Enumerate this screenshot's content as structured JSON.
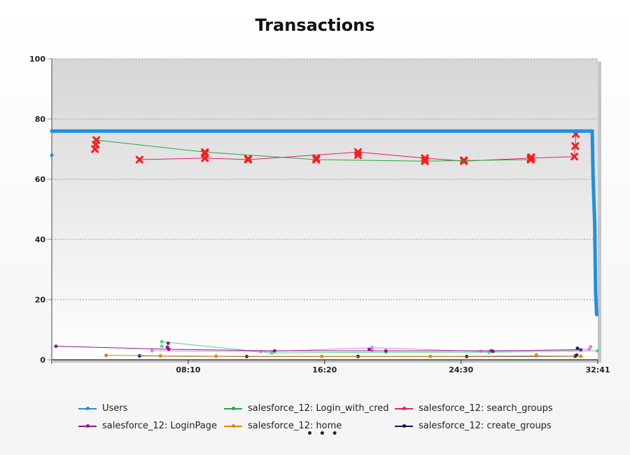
{
  "chart_data": {
    "type": "line",
    "title": "Transactions",
    "x_ticks": [
      "08:10",
      "16:20",
      "24:30",
      "32:41"
    ],
    "x_range_seconds": [
      0,
      1961
    ],
    "y_ticks": [
      "0",
      "20",
      "40",
      "60",
      "80",
      "100"
    ],
    "ylim": [
      0,
      100
    ],
    "grid": true,
    "legend_position": "bottom",
    "series": [
      {
        "name": "Users",
        "color": "#1e90e0",
        "marker": "dot",
        "width": 5,
        "points": [
          [
            0,
            76
          ],
          [
            1941,
            76
          ],
          [
            1944,
            61
          ],
          [
            1950,
            45
          ],
          [
            1953,
            23
          ],
          [
            1957,
            15
          ]
        ],
        "extra_points": [
          [
            0,
            68
          ]
        ]
      },
      {
        "name": "salesforce_12: Login_with_cred",
        "color": "#22aa44",
        "marker": "x",
        "width": 1,
        "points": [
          [
            160,
            73
          ],
          [
            550,
            69
          ],
          [
            950,
            66.5
          ],
          [
            1340,
            66
          ],
          [
            1720,
            66.5
          ]
        ]
      },
      {
        "name": "salesforce_12: search_groups",
        "color": "#e0206a",
        "marker": "x",
        "width": 1,
        "points": [
          [
            315,
            66.5
          ],
          [
            550,
            67
          ],
          [
            705,
            66.5
          ],
          [
            1100,
            69
          ],
          [
            1340,
            67
          ],
          [
            1480,
            66
          ],
          [
            1720,
            67
          ],
          [
            1877,
            67.5
          ],
          [
            1880,
            71
          ],
          [
            1882,
            75
          ]
        ],
        "extra_points": [
          [
            155,
            70
          ],
          [
            158,
            71.5
          ],
          [
            550,
            68.5
          ],
          [
            705,
            66.8
          ],
          [
            950,
            67
          ],
          [
            1100,
            68
          ],
          [
            1340,
            66.2
          ],
          [
            1480,
            66.3
          ],
          [
            1722,
            67.3
          ]
        ]
      },
      {
        "name": "salesforce_12: LoginPage",
        "color": "#8a1a8a",
        "marker": "dot",
        "width": 1,
        "points": [
          [
            15,
            4.5
          ],
          [
            420,
            3.5
          ],
          [
            800,
            3
          ],
          [
            1200,
            3
          ],
          [
            1580,
            3
          ],
          [
            1900,
            3.3
          ]
        ],
        "extra_points": [
          [
            415,
            4.2
          ],
          [
            418,
            5.5
          ],
          [
            1140,
            3.4
          ],
          [
            1585,
            2.8
          ]
        ]
      },
      {
        "name": "salesforce_12: home",
        "color": "#e08a00",
        "marker": "dot",
        "width": 1,
        "points": [
          [
            195,
            1.5
          ],
          [
            390,
            1.3
          ],
          [
            590,
            1.2
          ],
          [
            970,
            1.1
          ],
          [
            1360,
            1.1
          ],
          [
            1740,
            1.3
          ],
          [
            1900,
            1.2
          ]
        ],
        "extra_points": [
          [
            1740,
            1.6
          ]
        ]
      },
      {
        "name": "salesforce_12: create_groups",
        "color": "#101060",
        "marker": "dot",
        "width": 1,
        "points": [
          [
            315,
            1.3
          ],
          [
            700,
            1.1
          ],
          [
            1100,
            1.1
          ],
          [
            1490,
            1.1
          ],
          [
            1880,
            1.2
          ]
        ],
        "extra_points": [
          [
            1885,
            1.5
          ],
          [
            1888,
            3.8
          ]
        ]
      }
    ],
    "unlabeled_series": [
      {
        "color": "#55d090",
        "marker": "dot",
        "width": 1,
        "points": [
          [
            395,
            6
          ],
          [
            790,
            2.3
          ],
          [
            1200,
            2.5
          ],
          [
            1570,
            2.5
          ],
          [
            1960,
            3
          ]
        ],
        "extra_points": [
          [
            395,
            4.5
          ],
          [
            1575,
            3
          ]
        ]
      },
      {
        "color": "#e080e0",
        "marker": "dot",
        "width": 1,
        "points": [
          [
            360,
            3
          ],
          [
            750,
            2.7
          ],
          [
            1150,
            4
          ],
          [
            1540,
            2.8
          ],
          [
            1930,
            3.5
          ]
        ],
        "extra_points": [
          [
            1150,
            3.2
          ],
          [
            1935,
            4.3
          ]
        ]
      }
    ]
  },
  "legend": {
    "items": [
      {
        "label": "Users",
        "color": "#1e90e0"
      },
      {
        "label": "salesforce_12: Login_with_cred",
        "color": "#22aa44"
      },
      {
        "label": "salesforce_12: search_groups",
        "color": "#e0206a"
      },
      {
        "label": "salesforce_12: LoginPage",
        "color": "#8a1a8a"
      },
      {
        "label": "salesforce_12: home",
        "color": "#e08a00"
      },
      {
        "label": "salesforce_12: create_groups",
        "color": "#101060"
      }
    ],
    "more": "• • •"
  }
}
